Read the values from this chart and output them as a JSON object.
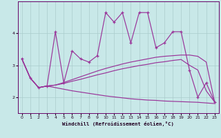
{
  "xlabel": "Windchill (Refroidissement éolien,°C)",
  "background_color": "#c8e8e8",
  "line_color": "#993399",
  "grid_color": "#aacccc",
  "x": [
    0,
    1,
    2,
    3,
    4,
    5,
    6,
    7,
    8,
    9,
    10,
    11,
    12,
    13,
    14,
    15,
    16,
    17,
    18,
    19,
    20,
    21,
    22,
    23
  ],
  "jagged": [
    3.2,
    2.6,
    2.3,
    2.35,
    4.05,
    2.45,
    3.45,
    3.2,
    3.1,
    3.3,
    4.65,
    4.35,
    4.65,
    3.7,
    4.65,
    4.65,
    3.55,
    3.7,
    4.05,
    4.05,
    2.85,
    2.0,
    2.45,
    1.85
  ],
  "trend_high": [
    3.2,
    2.6,
    2.3,
    2.35,
    2.38,
    2.46,
    2.55,
    2.64,
    2.73,
    2.82,
    2.9,
    2.97,
    3.04,
    3.1,
    3.15,
    3.2,
    3.25,
    3.28,
    3.3,
    3.32,
    3.32,
    3.28,
    3.1,
    1.85
  ],
  "trend_mid": [
    3.2,
    2.6,
    2.3,
    2.35,
    2.38,
    2.43,
    2.5,
    2.56,
    2.63,
    2.7,
    2.76,
    2.83,
    2.89,
    2.94,
    2.99,
    3.03,
    3.08,
    3.11,
    3.15,
    3.18,
    3.0,
    2.85,
    2.2,
    1.85
  ],
  "trend_low": [
    3.2,
    2.6,
    2.3,
    2.35,
    2.3,
    2.25,
    2.2,
    2.16,
    2.12,
    2.08,
    2.04,
    2.01,
    1.98,
    1.95,
    1.93,
    1.91,
    1.9,
    1.88,
    1.87,
    1.86,
    1.85,
    1.84,
    1.82,
    1.8
  ],
  "ylim": [
    1.5,
    5.0
  ],
  "yticks": [
    2,
    3,
    4
  ],
  "xlim": [
    -0.5,
    23.5
  ]
}
